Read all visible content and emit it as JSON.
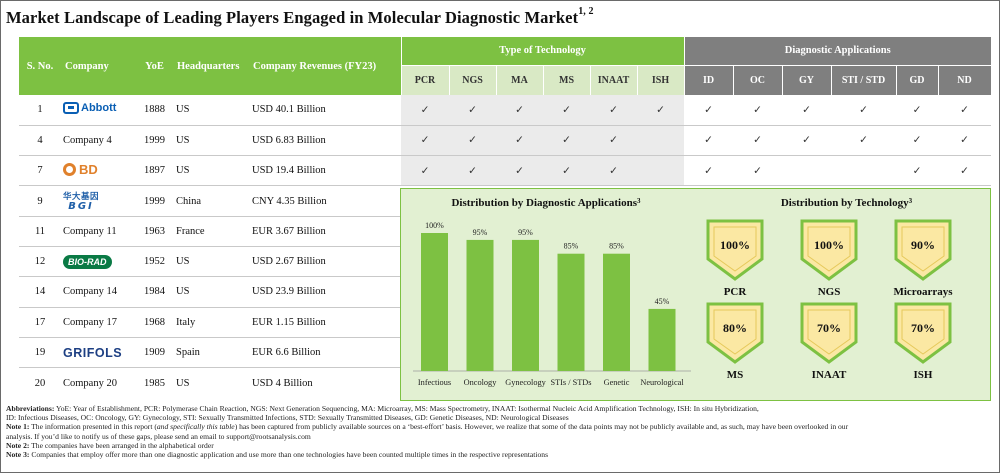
{
  "title": "Market Landscape of Leading Players Engaged in Molecular Diagnostic Market",
  "title_refs": "1, 2",
  "headers": {
    "sno": "S. No.",
    "company": "Company",
    "yoe": "YoE",
    "hq": "Headquarters",
    "revenue": "Company Revenues (FY23)",
    "tech_group": "Type of Technology",
    "app_group": "Diagnostic Applications",
    "tech_cols": [
      "PCR",
      "NGS",
      "MA",
      "MS",
      "INAAT",
      "ISH"
    ],
    "app_cols": [
      "ID",
      "OC",
      "GY",
      "STI / STD",
      "GD",
      "ND"
    ]
  },
  "check_glyph": "✓",
  "rows": [
    {
      "sno": "1",
      "company": "Abbott",
      "logo": "abbott",
      "yoe": "1888",
      "hq": "US",
      "revenue": "USD 40.1 Billion",
      "tech": [
        1,
        1,
        1,
        1,
        1,
        1
      ],
      "app": [
        1,
        1,
        1,
        1,
        1,
        1
      ]
    },
    {
      "sno": "4",
      "company": "Company 4",
      "logo": "",
      "yoe": "1999",
      "hq": "US",
      "revenue": "USD 6.83 Billion",
      "tech": [
        1,
        1,
        1,
        1,
        1,
        0
      ],
      "app": [
        1,
        1,
        1,
        1,
        1,
        1
      ]
    },
    {
      "sno": "7",
      "company": "BD",
      "logo": "bd",
      "yoe": "1897",
      "hq": "US",
      "revenue": "USD 19.4 Billion",
      "tech": [
        1,
        1,
        1,
        1,
        1,
        0
      ],
      "app": [
        1,
        1,
        0,
        0,
        1,
        1
      ]
    },
    {
      "sno": "9",
      "company": "BGI",
      "logo": "bgi",
      "logo_cn": "华大基因",
      "yoe": "1999",
      "hq": "China",
      "revenue": "CNY 4.35 Billion"
    },
    {
      "sno": "11",
      "company": "Company 11",
      "logo": "",
      "yoe": "1963",
      "hq": "France",
      "revenue": "EUR 3.67 Billion"
    },
    {
      "sno": "12",
      "company": "BIO-RAD",
      "logo": "biorad",
      "yoe": "1952",
      "hq": "US",
      "revenue": "USD 2.67 Billion"
    },
    {
      "sno": "14",
      "company": "Company 14",
      "logo": "",
      "yoe": "1984",
      "hq": "US",
      "revenue": "USD 23.9 Billion"
    },
    {
      "sno": "17",
      "company": "Company 17",
      "logo": "",
      "yoe": "1968",
      "hq": "Italy",
      "revenue": "EUR 1.15 Billion"
    },
    {
      "sno": "19",
      "company": "GRIFOLS",
      "logo": "grifols",
      "yoe": "1909",
      "hq": "Spain",
      "revenue": "EUR 6.6 Billion"
    },
    {
      "sno": "20",
      "company": "Company 20",
      "logo": "",
      "yoe": "1985",
      "hq": "US",
      "revenue": "USD 4 Billion"
    }
  ],
  "chart_data": [
    {
      "type": "bar",
      "title": "Distribution by Diagnostic Applications",
      "title_ref": "3",
      "categories": [
        "Infectious",
        "Oncology",
        "Gynecology",
        "STIs / STDs",
        "Genetic",
        "Neurological"
      ],
      "values": [
        100,
        95,
        95,
        85,
        85,
        45
      ],
      "value_labels": [
        "100%",
        "95%",
        "95%",
        "85%",
        "85%",
        "45%"
      ],
      "ylim": [
        0,
        100
      ],
      "xlabel": "",
      "ylabel": "",
      "bar_color": "#7dc142",
      "grid": false
    },
    {
      "type": "table",
      "title": "Distribution by Technology",
      "title_ref": "3",
      "categories": [
        "PCR",
        "NGS",
        "Microarrays",
        "MS",
        "INAAT",
        "ISH"
      ],
      "values": [
        100,
        100,
        90,
        80,
        70,
        70
      ],
      "value_labels": [
        "100%",
        "100%",
        "90%",
        "80%",
        "70%",
        "70%"
      ]
    }
  ],
  "notes": {
    "abbrev_label": "Abbreviations:",
    "abbrev_text": "YoE: Year of Establishment, PCR: Polymerase Chain Reaction, NGS: Next Generation Sequencing, MA: Microarray, MS: Mass Spectrometry, INAAT: Isothermal Nucleic Acid Amplification Technology, ISH: In situ Hybridization,",
    "abbrev_text2": "ID: Infectious Diseases, OC: Oncology, GY: Gynecology, STI: Sexually Transmitted Infections, STD: Sexually Transmitted Diseases, GD: Genetic Diseases, ND: Neurological Diseases",
    "note1_label": "Note 1:",
    "note1_a": "The information presented in this report (",
    "note1_em": "and specifically this table",
    "note1_b": ") has been captured from publicly available sources on a ‘best-effort’ basis. However, we realize that some of the data points may not be publicly available and, as such, may have been overlooked in our",
    "note1_c": "analysis. If you’d like to notify us of these gaps, please send an email to support@rootsanalysis.com",
    "note2_label": "Note 2:",
    "note2": "The companies have been arranged in the alphabetical order",
    "note3_label": "Note 3:",
    "note3": "Companies that employ offer more than one diagnostic application and use more than one technologies have been counted multiple times in the respective representations"
  },
  "colors": {
    "green": "#7dc142",
    "grey": "#7f7f7f",
    "panel": "#e2f0d2",
    "badge_fill": "#fbe8a3",
    "badge_border": "#7dc142"
  }
}
